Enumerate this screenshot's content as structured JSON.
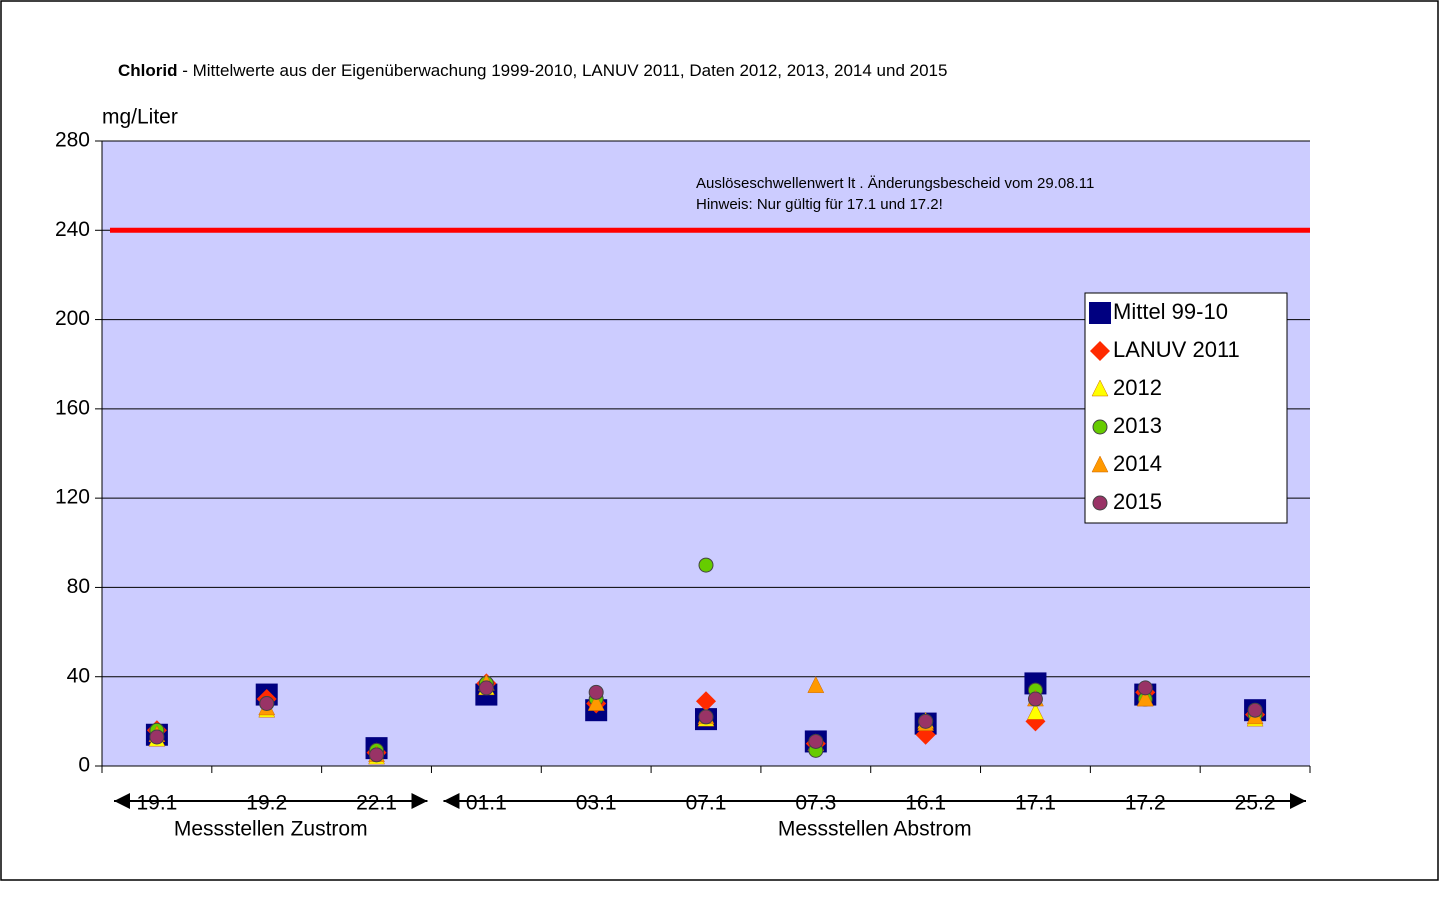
{
  "chart_data": {
    "type": "scatter",
    "title": {
      "bold": "Chlorid",
      "rest": " - Mittelwerte aus der Eigenüberwachung 1999-2010, LANUV 2011, Daten 2012, 2013, 2014 und 2015"
    },
    "y_label": "mg/Liter",
    "categories": [
      "19.1",
      "19.2",
      "22.1",
      "01.1",
      "03.1",
      "07.1",
      "07.3",
      "16.1",
      "17.1",
      "17.2",
      "25.2"
    ],
    "series": [
      {
        "name": "Mittel 99-10",
        "color": "#000080",
        "marker": "square",
        "values": [
          14,
          32,
          8,
          32,
          25,
          21,
          11,
          19,
          37,
          32,
          25
        ]
      },
      {
        "name": "LANUV 2011",
        "color": "#ff2a00",
        "marker": "diamond",
        "values": [
          16,
          30,
          6,
          37,
          28,
          29,
          10,
          14,
          20,
          33,
          23
        ]
      },
      {
        "name": "2012",
        "color": "#ffff00",
        "marker": "triangle",
        "values": [
          12,
          25,
          4,
          35,
          28,
          21,
          10,
          20,
          24,
          30,
          21
        ]
      },
      {
        "name": "2013",
        "color": "#66cc00",
        "marker": "circle",
        "values": [
          16,
          28,
          7,
          37,
          30,
          90,
          7,
          20,
          34,
          30,
          23
        ]
      },
      {
        "name": "2014",
        "color": "#ff9900",
        "marker": "triangle",
        "values": [
          14,
          26,
          5,
          37,
          28,
          22,
          36,
          19,
          30,
          30,
          22
        ]
      },
      {
        "name": "2015",
        "color": "#993366",
        "marker": "circle",
        "values": [
          13,
          28,
          5,
          35,
          33,
          22,
          11,
          20,
          30,
          35,
          25
        ]
      }
    ],
    "threshold": {
      "value": 240,
      "color": "#ff0000",
      "label": [
        "Auslöseschwellenwert lt . Änderungsbescheid vom 29.08.11",
        "Hinweis: Nur gültig für 17.1 und 17.2!"
      ]
    },
    "groups": [
      {
        "label": "Messstellen Zustrom",
        "from": 0,
        "to": 2
      },
      {
        "label": "Messstellen Abstrom",
        "from": 3,
        "to": 10
      }
    ],
    "ylim": [
      0,
      280
    ],
    "yticks": [
      0,
      40,
      80,
      120,
      160,
      200,
      240,
      280
    ],
    "grid": true,
    "legend": "right",
    "background": "#ccccff"
  }
}
